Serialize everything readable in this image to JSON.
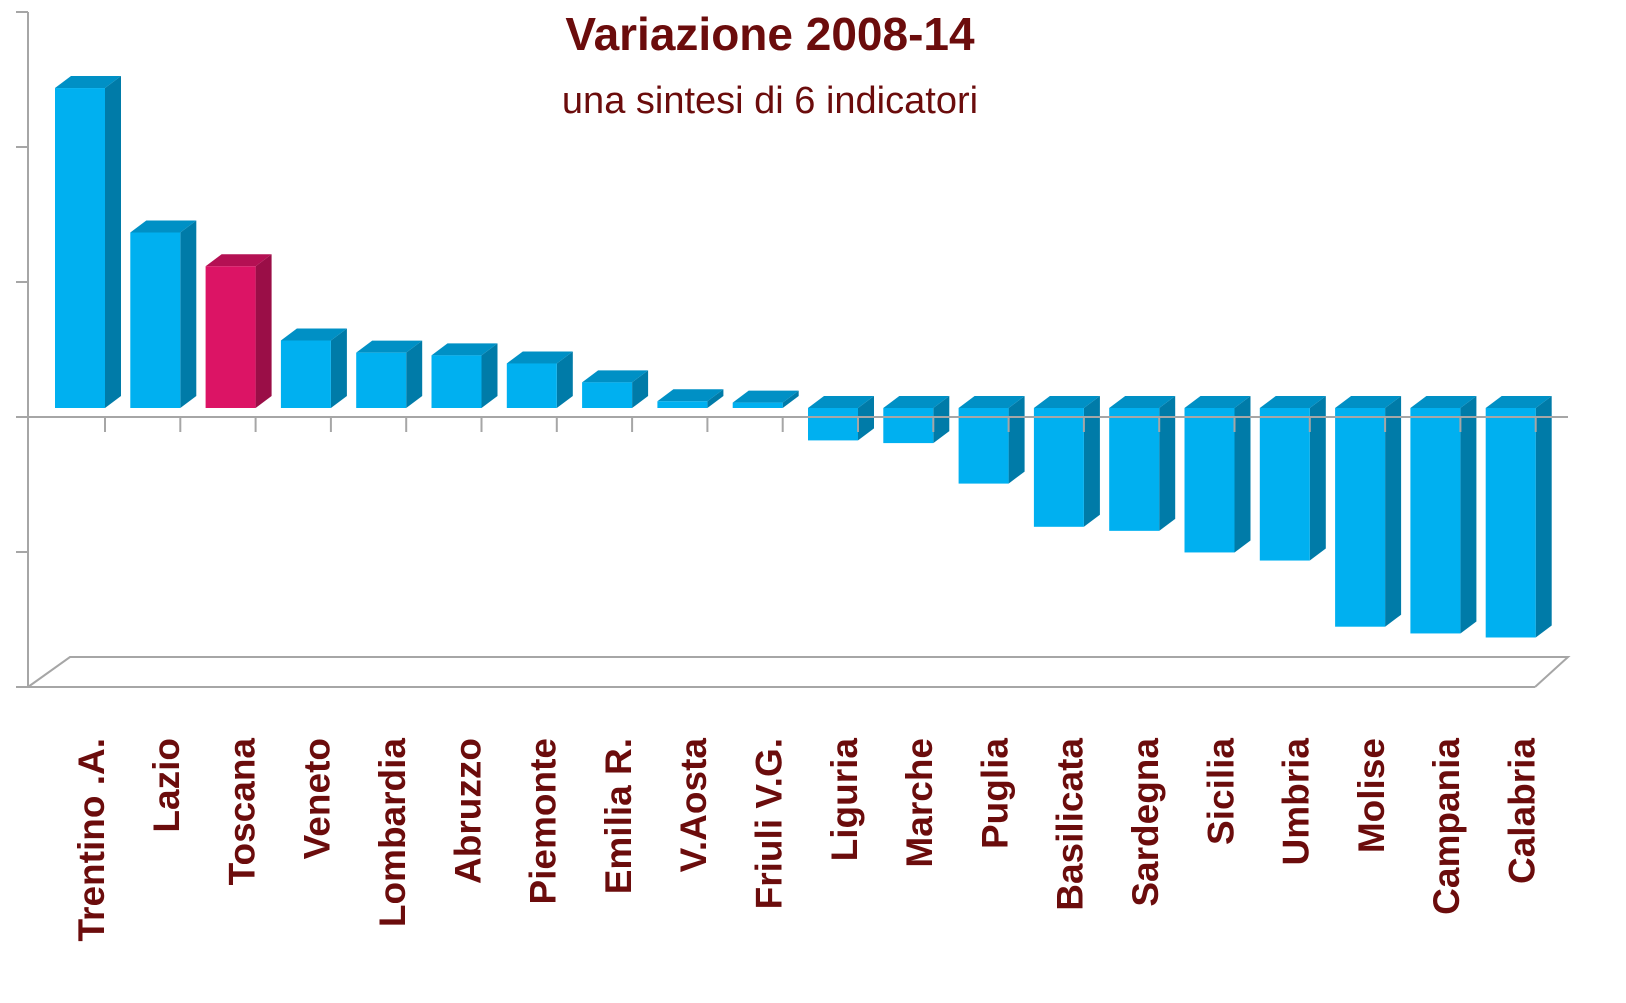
{
  "chart_data": {
    "type": "bar3d",
    "title": "Variazione 2008-14",
    "subtitle": "una sintesi di 6 indicatori",
    "categories": [
      "Trentino .A.",
      "Lazio",
      "Toscana",
      "Veneto",
      "Lombardia",
      "Abruzzo",
      "Piemonte",
      "Emilia R.",
      "V.Aosta",
      "Friuli V.G.",
      "Liguria",
      "Marche",
      "Puglia",
      "Basilicata",
      "Sardegna",
      "Sicilia",
      "Umbria",
      "Molise",
      "Campania",
      "Calabria"
    ],
    "values": [
      2.37,
      1.3,
      1.05,
      0.5,
      0.41,
      0.39,
      0.33,
      0.19,
      0.05,
      0.04,
      -0.24,
      -0.26,
      -0.56,
      -0.88,
      -0.91,
      -1.07,
      -1.13,
      -1.62,
      -1.67,
      -1.7
    ],
    "colors": [
      "#00b0f0",
      "#00b0f0",
      "#dc1465",
      "#00b0f0",
      "#00b0f0",
      "#00b0f0",
      "#00b0f0",
      "#00b0f0",
      "#00b0f0",
      "#00b0f0",
      "#00b0f0",
      "#00b0f0",
      "#00b0f0",
      "#00b0f0",
      "#00b0f0",
      "#00b0f0",
      "#00b0f0",
      "#00b0f0",
      "#00b0f0",
      "#00b0f0"
    ],
    "ylim": [
      -2,
      3
    ],
    "yticks": [
      -2,
      -1,
      0,
      1,
      2,
      3
    ],
    "grid": false
  }
}
